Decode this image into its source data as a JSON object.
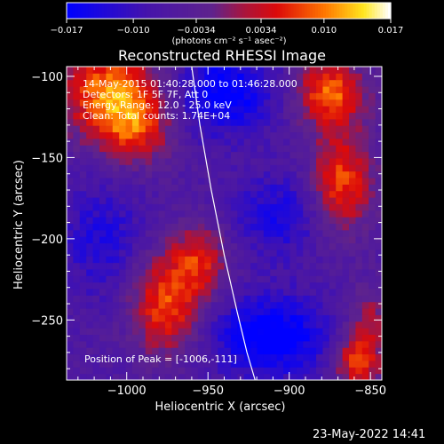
{
  "chart_data": {
    "type": "heatmap",
    "title": "Reconstructed RHESSI Image",
    "xlabel": "Heliocentric X (arcsec)",
    "ylabel": "Heliocentric Y (arcsec)",
    "xlim": [
      -1037,
      -843
    ],
    "ylim": [
      -287,
      -94
    ],
    "xticks": [
      {
        "v": -1000,
        "label": "−1000"
      },
      {
        "v": -950,
        "label": "−950"
      },
      {
        "v": -900,
        "label": "−900"
      },
      {
        "v": -850,
        "label": "−850"
      }
    ],
    "yticks": [
      {
        "v": -100,
        "label": "−100"
      },
      {
        "v": -150,
        "label": "−150"
      },
      {
        "v": -200,
        "label": "−200"
      },
      {
        "v": -250,
        "label": "−250"
      }
    ],
    "colorbar": {
      "range": [
        -0.017,
        0.017
      ],
      "ticks": [
        {
          "v": -0.017,
          "label": "−0.017"
        },
        {
          "v": -0.01,
          "label": "−0.010"
        },
        {
          "v": -0.0034,
          "label": "−0.0034"
        },
        {
          "v": 0.0034,
          "label": "0.0034"
        },
        {
          "v": 0.01,
          "label": "0.010"
        },
        {
          "v": 0.017,
          "label": "0.017"
        }
      ],
      "unit_label": "(photons cm⁻² s⁻¹ asec⁻²)"
    },
    "info_lines": [
      "14-May-2015 01:40:28.000 to 01:46:28.000",
      "Detectors: 1F 5F 7F, Att 0",
      "Energy Range: 12.0 - 25.0 keV",
      "Clean: Total counts: 1.74E+04"
    ],
    "peak_label": "Position of Peak = [-1006,-111]",
    "limb": [
      [
        -960,
        -94
      ],
      [
        -955,
        -130
      ],
      [
        -948,
        -170
      ],
      [
        -940,
        -210
      ],
      [
        -932,
        -245
      ],
      [
        -926,
        -270
      ],
      [
        -921,
        -287
      ]
    ],
    "sources": [
      {
        "x": -1008,
        "y": -110,
        "amp": 0.017,
        "sx": 22,
        "sy": 20
      },
      {
        "x": -995,
        "y": -135,
        "amp": 0.009,
        "sx": 16,
        "sy": 14
      },
      {
        "x": -975,
        "y": -240,
        "amp": 0.014,
        "sx": 16,
        "sy": 22
      },
      {
        "x": -955,
        "y": -212,
        "amp": 0.01,
        "sx": 12,
        "sy": 15
      },
      {
        "x": -875,
        "y": -110,
        "amp": 0.015,
        "sx": 15,
        "sy": 14
      },
      {
        "x": -868,
        "y": -165,
        "amp": 0.014,
        "sx": 14,
        "sy": 22
      },
      {
        "x": -858,
        "y": -275,
        "amp": 0.014,
        "sx": 10,
        "sy": 12
      },
      {
        "x": -850,
        "y": -248,
        "amp": 0.007,
        "sx": 10,
        "sy": 14
      },
      {
        "x": -940,
        "y": -110,
        "amp": -0.012,
        "sx": 22,
        "sy": 18
      },
      {
        "x": -912,
        "y": -260,
        "amp": -0.013,
        "sx": 26,
        "sy": 18
      },
      {
        "x": -905,
        "y": -185,
        "amp": -0.008,
        "sx": 20,
        "sy": 18
      },
      {
        "x": -1015,
        "y": -200,
        "amp": -0.007,
        "sx": 18,
        "sy": 25
      }
    ],
    "background": -0.006
  },
  "timestamp": "23-May-2022 14:41"
}
